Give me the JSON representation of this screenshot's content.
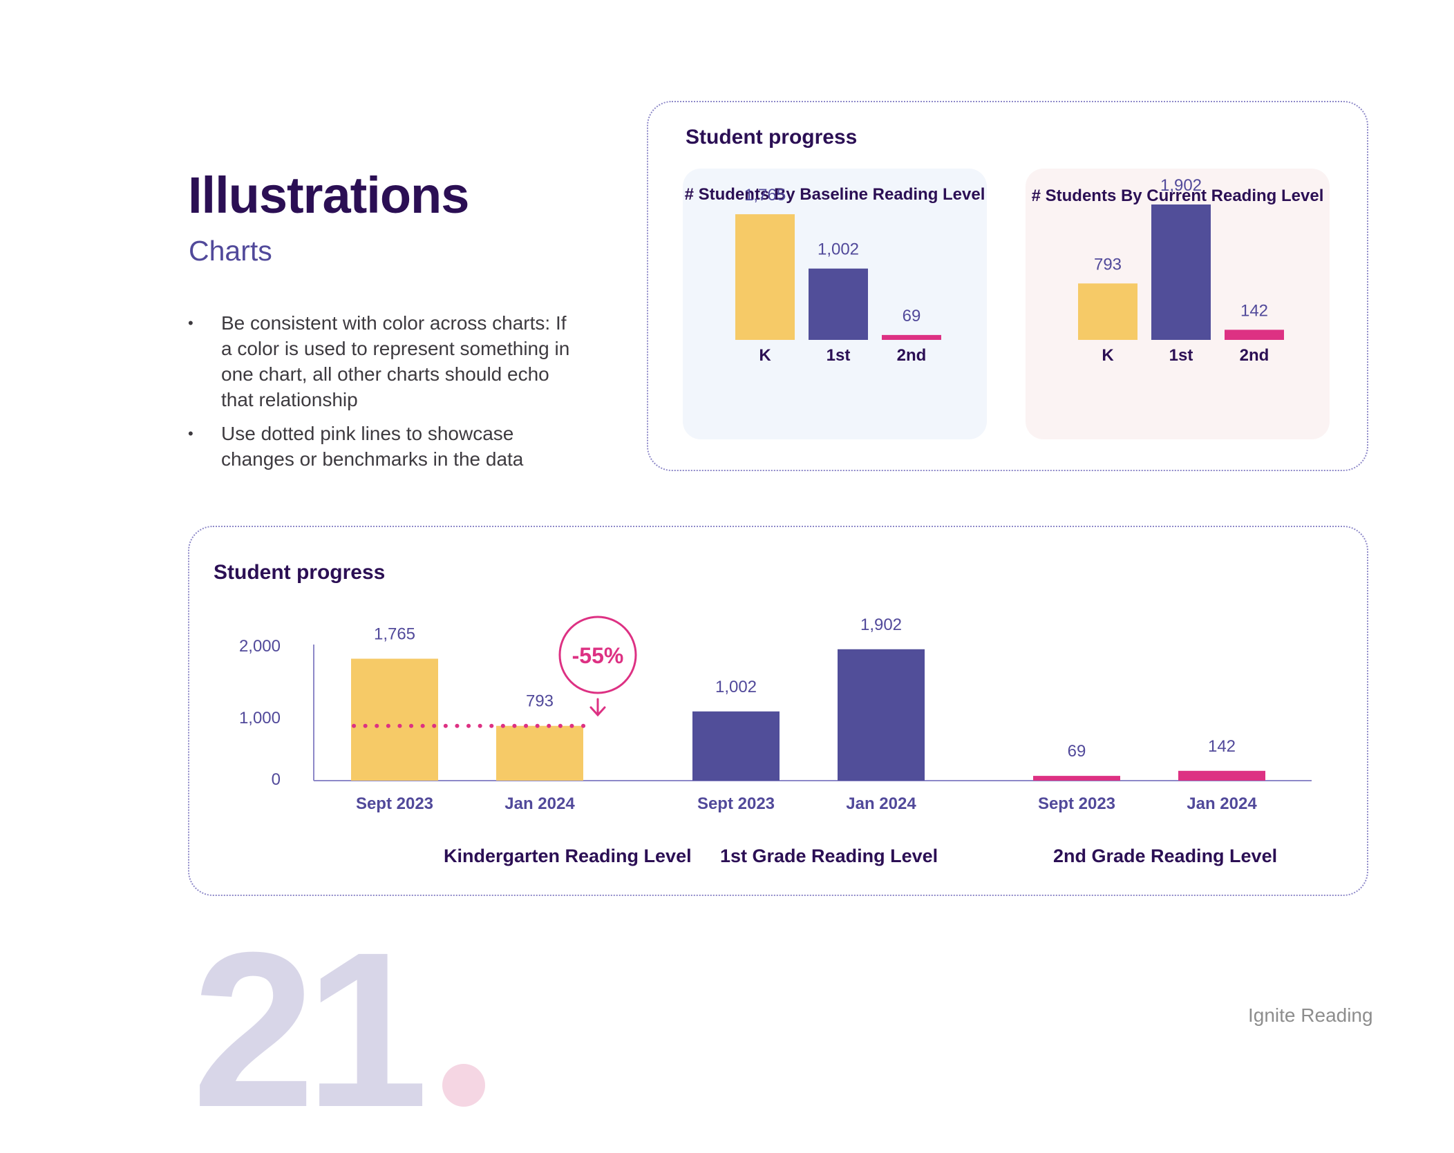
{
  "heading": {
    "title": "Illustrations",
    "subtitle": "Charts"
  },
  "bullets": [
    {
      "bullet": "•",
      "text": "Be consistent with color across charts: If a color is used to represent something in one chart, all other charts should echo that relationship"
    },
    {
      "bullet": "•",
      "text": "Use dotted pink lines to showcase changes or benchmarks in the data"
    }
  ],
  "colors": {
    "yellow": "#f6ca67",
    "indigo": "#514e99",
    "pink": "#dd3183",
    "label": "#51499a",
    "dark": "#2b0f54"
  },
  "top_panel": {
    "title": "Student progress"
  },
  "bottom_panel": {
    "title": "Student progress"
  },
  "page_number": "21",
  "footer": {
    "brand": "Ignite Reading"
  },
  "chart_data": [
    {
      "type": "bar",
      "title": "# Students By Baseline Reading Level",
      "categories": [
        "K",
        "1st",
        "2nd"
      ],
      "values": [
        1765,
        1002,
        69
      ],
      "value_labels": [
        "1,765",
        "1,002",
        "69"
      ],
      "colors": [
        "#f6ca67",
        "#514e99",
        "#dd3183"
      ],
      "ylim": [
        0,
        1902
      ]
    },
    {
      "type": "bar",
      "title": "# Students By Current Reading Level",
      "categories": [
        "K",
        "1st",
        "2nd"
      ],
      "values": [
        793,
        1902,
        142
      ],
      "value_labels": [
        "793",
        "1,902",
        "142"
      ],
      "colors": [
        "#f6ca67",
        "#514e99",
        "#dd3183"
      ],
      "ylim": [
        0,
        1902
      ]
    },
    {
      "type": "bar",
      "ylim": [
        0,
        2000
      ],
      "yticks": [
        0,
        1000,
        2000
      ],
      "ytick_labels": [
        "0",
        "1,000",
        "2,000"
      ],
      "groups": [
        {
          "label": "Kindergarten Reading Level",
          "color": "#f6ca67",
          "bars": [
            {
              "x": "Sept 2023",
              "value": 1765,
              "label": "1,765"
            },
            {
              "x": "Jan 2024",
              "value": 793,
              "label": "793"
            }
          ]
        },
        {
          "label": "1st Grade Reading Level",
          "color": "#514e99",
          "bars": [
            {
              "x": "Sept 2023",
              "value": 1002,
              "label": "1,002"
            },
            {
              "x": "Jan 2024",
              "value": 1902,
              "label": "1,902"
            }
          ]
        },
        {
          "label": "2nd Grade Reading Level",
          "color": "#dd3183",
          "bars": [
            {
              "x": "Sept 2023",
              "value": 69,
              "label": "69"
            },
            {
              "x": "Jan 2024",
              "value": 142,
              "label": "142"
            }
          ]
        }
      ],
      "annotation": {
        "text": "-55%",
        "benchmark_value": 793,
        "color": "#dd3183"
      }
    }
  ]
}
